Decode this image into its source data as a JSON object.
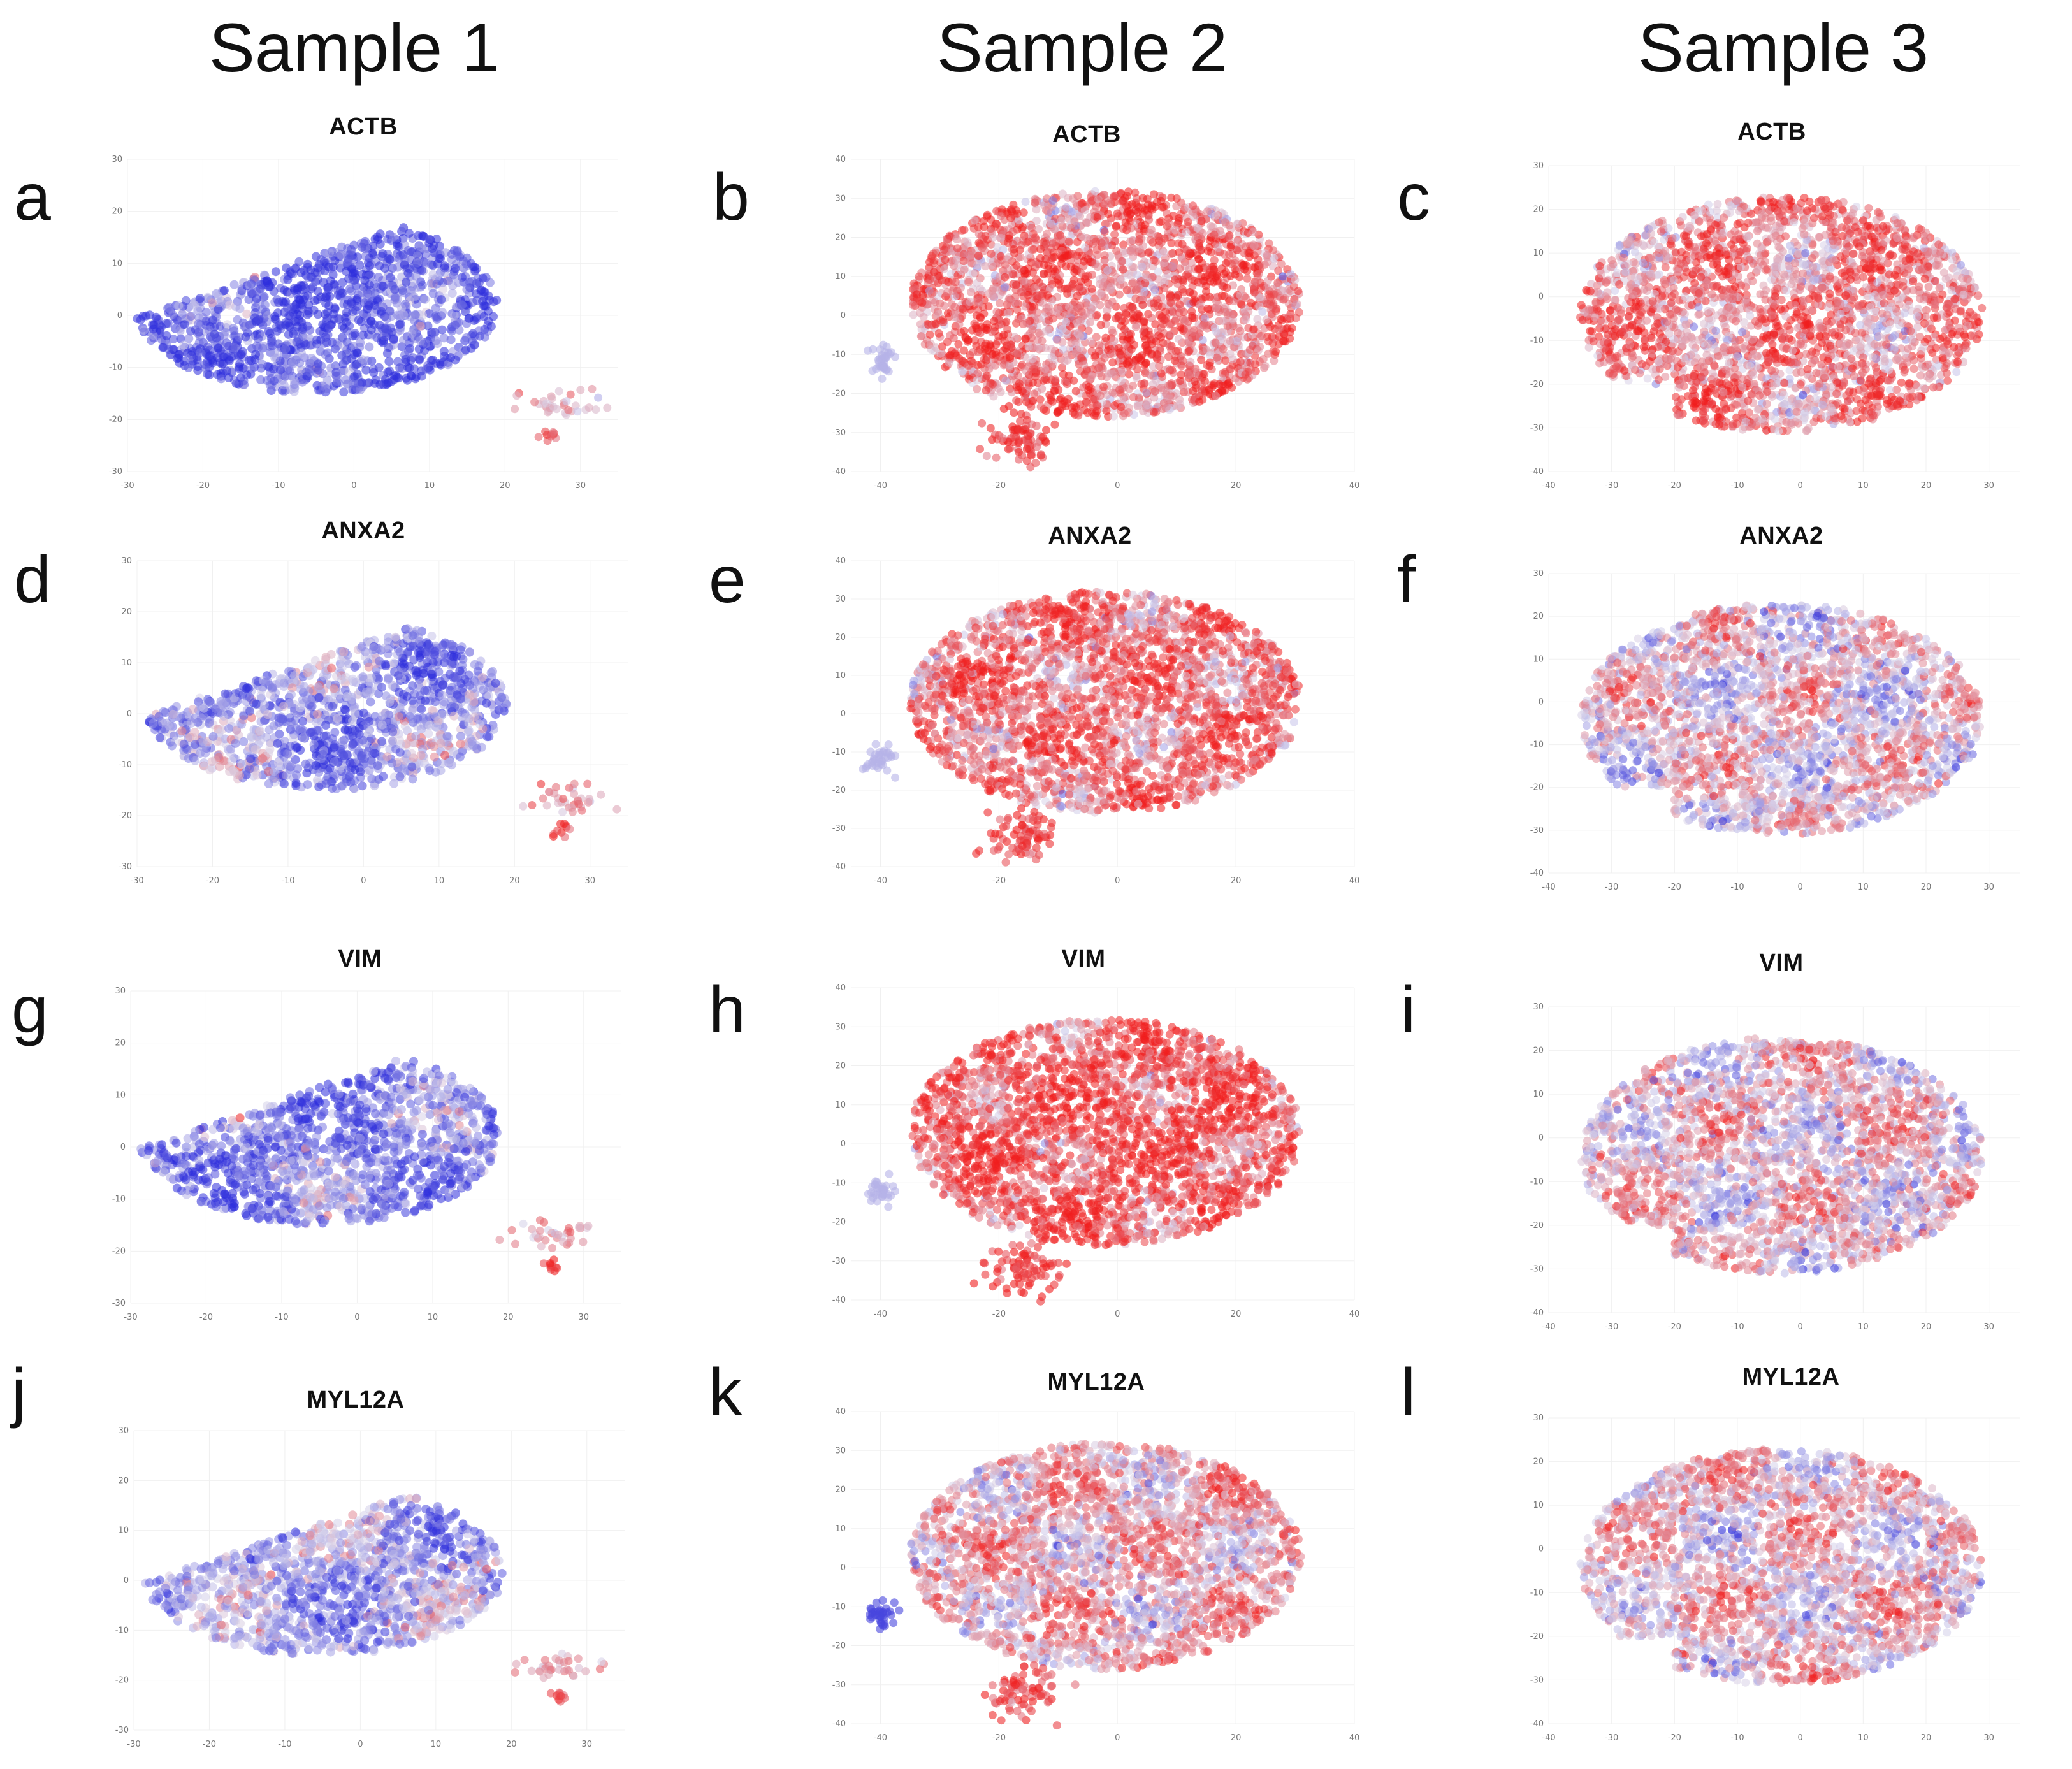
{
  "columns": [
    "Sample 1",
    "Sample 2",
    "Sample 3"
  ],
  "colors": {
    "low": "#2d2ddc",
    "mid": "#d8d4ea",
    "high": "#f01e1e",
    "grid": "#f0f0f0"
  },
  "chart_data": [
    {
      "panel": "a",
      "sample": "Sample 1",
      "type": "scatter",
      "title": "ACTB",
      "bias": -0.85,
      "xlim": [
        -30,
        35
      ],
      "ylim": [
        -30,
        30
      ],
      "xticks": [
        -30,
        -20,
        -10,
        0,
        10,
        20,
        30
      ],
      "yticks": [
        -30,
        -20,
        -10,
        0,
        10,
        20,
        30
      ],
      "shape": "s1"
    },
    {
      "panel": "b",
      "sample": "Sample 2",
      "type": "scatter",
      "title": "ACTB",
      "bias": 0.7,
      "xlim": [
        -45,
        40
      ],
      "ylim": [
        -40,
        40
      ],
      "xticks": [
        -40,
        -20,
        0,
        20,
        40
      ],
      "yticks": [
        -40,
        -30,
        -20,
        -10,
        0,
        10,
        20,
        30,
        40
      ],
      "shape": "s2"
    },
    {
      "panel": "c",
      "sample": "Sample 3",
      "type": "scatter",
      "title": "ACTB",
      "bias": 0.55,
      "xlim": [
        -40,
        35
      ],
      "ylim": [
        -40,
        30
      ],
      "xticks": [
        -40,
        -30,
        -20,
        -10,
        0,
        10,
        20,
        30
      ],
      "yticks": [
        -40,
        -30,
        -20,
        -10,
        0,
        10,
        20,
        30
      ],
      "shape": "s3"
    },
    {
      "panel": "d",
      "sample": "Sample 1",
      "type": "scatter",
      "title": "ANXA2",
      "bias": -0.45,
      "xlim": [
        -30,
        35
      ],
      "ylim": [
        -30,
        30
      ],
      "xticks": [
        -30,
        -20,
        -10,
        0,
        10,
        20,
        30
      ],
      "yticks": [
        -30,
        -20,
        -10,
        0,
        10,
        20,
        30
      ],
      "shape": "s1"
    },
    {
      "panel": "e",
      "sample": "Sample 2",
      "type": "scatter",
      "title": "ANXA2",
      "bias": 0.65,
      "xlim": [
        -45,
        40
      ],
      "ylim": [
        -40,
        40
      ],
      "xticks": [
        -40,
        -20,
        0,
        20,
        40
      ],
      "yticks": [
        -40,
        -30,
        -20,
        -10,
        0,
        10,
        20,
        30,
        40
      ],
      "shape": "s2"
    },
    {
      "panel": "f",
      "sample": "Sample 3",
      "type": "scatter",
      "title": "ANXA2",
      "bias": 0.1,
      "xlim": [
        -40,
        35
      ],
      "ylim": [
        -40,
        30
      ],
      "xticks": [
        -40,
        -30,
        -20,
        -10,
        0,
        10,
        20,
        30
      ],
      "yticks": [
        -40,
        -30,
        -20,
        -10,
        0,
        10,
        20,
        30
      ],
      "shape": "s3"
    },
    {
      "panel": "g",
      "sample": "Sample 1",
      "type": "scatter",
      "title": "VIM",
      "bias": -0.6,
      "xlim": [
        -30,
        35
      ],
      "ylim": [
        -30,
        30
      ],
      "xticks": [
        -30,
        -20,
        -10,
        0,
        10,
        20,
        30
      ],
      "yticks": [
        -30,
        -20,
        -10,
        0,
        10,
        20,
        30
      ],
      "shape": "s1"
    },
    {
      "panel": "h",
      "sample": "Sample 2",
      "type": "scatter",
      "title": "VIM",
      "bias": 0.8,
      "xlim": [
        -45,
        40
      ],
      "ylim": [
        -40,
        40
      ],
      "xticks": [
        -40,
        -20,
        0,
        20,
        40
      ],
      "yticks": [
        -40,
        -30,
        -20,
        -10,
        0,
        10,
        20,
        30,
        40
      ],
      "shape": "s2"
    },
    {
      "panel": "i",
      "sample": "Sample 3",
      "type": "scatter",
      "title": "VIM",
      "bias": 0.15,
      "xlim": [
        -40,
        35
      ],
      "ylim": [
        -40,
        30
      ],
      "xticks": [
        -40,
        -30,
        -20,
        -10,
        0,
        10,
        20,
        30
      ],
      "yticks": [
        -40,
        -30,
        -20,
        -10,
        0,
        10,
        20,
        30
      ],
      "shape": "s3"
    },
    {
      "panel": "j",
      "sample": "Sample 1",
      "type": "scatter",
      "title": "MYL12A",
      "bias": -0.35,
      "xlim": [
        -30,
        35
      ],
      "ylim": [
        -30,
        30
      ],
      "xticks": [
        -30,
        -20,
        -10,
        0,
        10,
        20,
        30
      ],
      "yticks": [
        -30,
        -20,
        -10,
        0,
        10,
        20,
        30
      ],
      "shape": "s1"
    },
    {
      "panel": "k",
      "sample": "Sample 2",
      "type": "scatter",
      "title": "MYL12A",
      "bias": 0.3,
      "xlim": [
        -45,
        40
      ],
      "ylim": [
        -40,
        40
      ],
      "xticks": [
        -40,
        -20,
        0,
        20,
        40
      ],
      "yticks": [
        -40,
        -30,
        -20,
        -10,
        0,
        10,
        20,
        30,
        40
      ],
      "shape": "s2"
    },
    {
      "panel": "l",
      "sample": "Sample 3",
      "type": "scatter",
      "title": "MYL12A",
      "bias": 0.2,
      "xlim": [
        -40,
        35
      ],
      "ylim": [
        -40,
        30
      ],
      "xticks": [
        -40,
        -30,
        -20,
        -10,
        0,
        10,
        20,
        30
      ],
      "yticks": [
        -40,
        -30,
        -20,
        -10,
        0,
        10,
        20,
        30
      ],
      "shape": "s3"
    }
  ]
}
